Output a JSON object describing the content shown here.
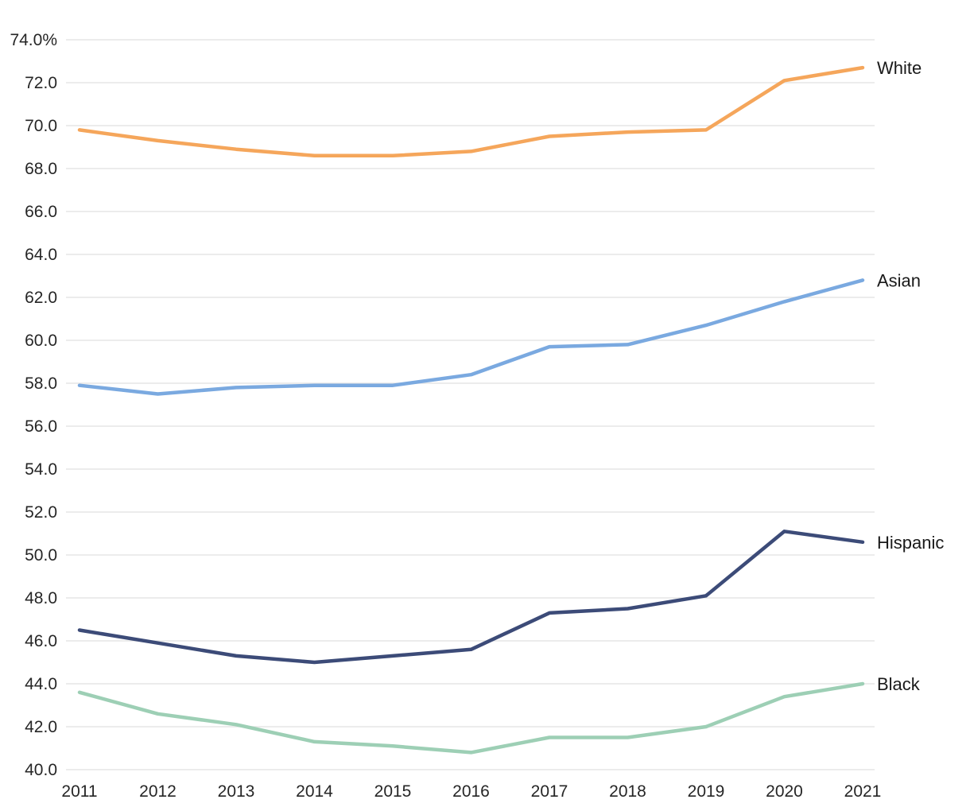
{
  "chart_data": {
    "type": "line",
    "title": "",
    "xlabel": "",
    "ylabel": "",
    "x": [
      2011,
      2012,
      2013,
      2014,
      2015,
      2016,
      2017,
      2018,
      2019,
      2020,
      2021
    ],
    "y_axis": {
      "min": 40.0,
      "max": 74.0,
      "step": 2.0,
      "top_tick_label": "74.0%",
      "bottom_tick_label": "40.0",
      "unit": "%"
    },
    "grid": true,
    "legend_position": "right-end-labels",
    "series": [
      {
        "name": "White",
        "color": "#F5A65B",
        "values": [
          69.8,
          69.3,
          68.9,
          68.6,
          68.6,
          68.8,
          69.5,
          69.7,
          69.8,
          72.1,
          72.7
        ]
      },
      {
        "name": "Asian",
        "color": "#7AA9E0",
        "values": [
          57.9,
          57.5,
          57.8,
          57.9,
          57.9,
          58.4,
          59.7,
          59.8,
          60.7,
          61.8,
          62.8
        ]
      },
      {
        "name": "Hispanic",
        "color": "#3C4B78",
        "values": [
          46.5,
          45.9,
          45.3,
          45.0,
          45.3,
          45.6,
          47.3,
          47.5,
          48.1,
          51.1,
          50.6
        ]
      },
      {
        "name": "Black",
        "color": "#9DCFB5",
        "values": [
          43.6,
          42.6,
          42.1,
          41.3,
          41.1,
          40.8,
          41.5,
          41.5,
          42.0,
          43.4,
          44.0
        ]
      }
    ]
  },
  "colors": {
    "grid": "#E6E6E6",
    "tick_text": "#262626",
    "label_text": "#1a1a1a",
    "background": "#FFFFFF"
  }
}
